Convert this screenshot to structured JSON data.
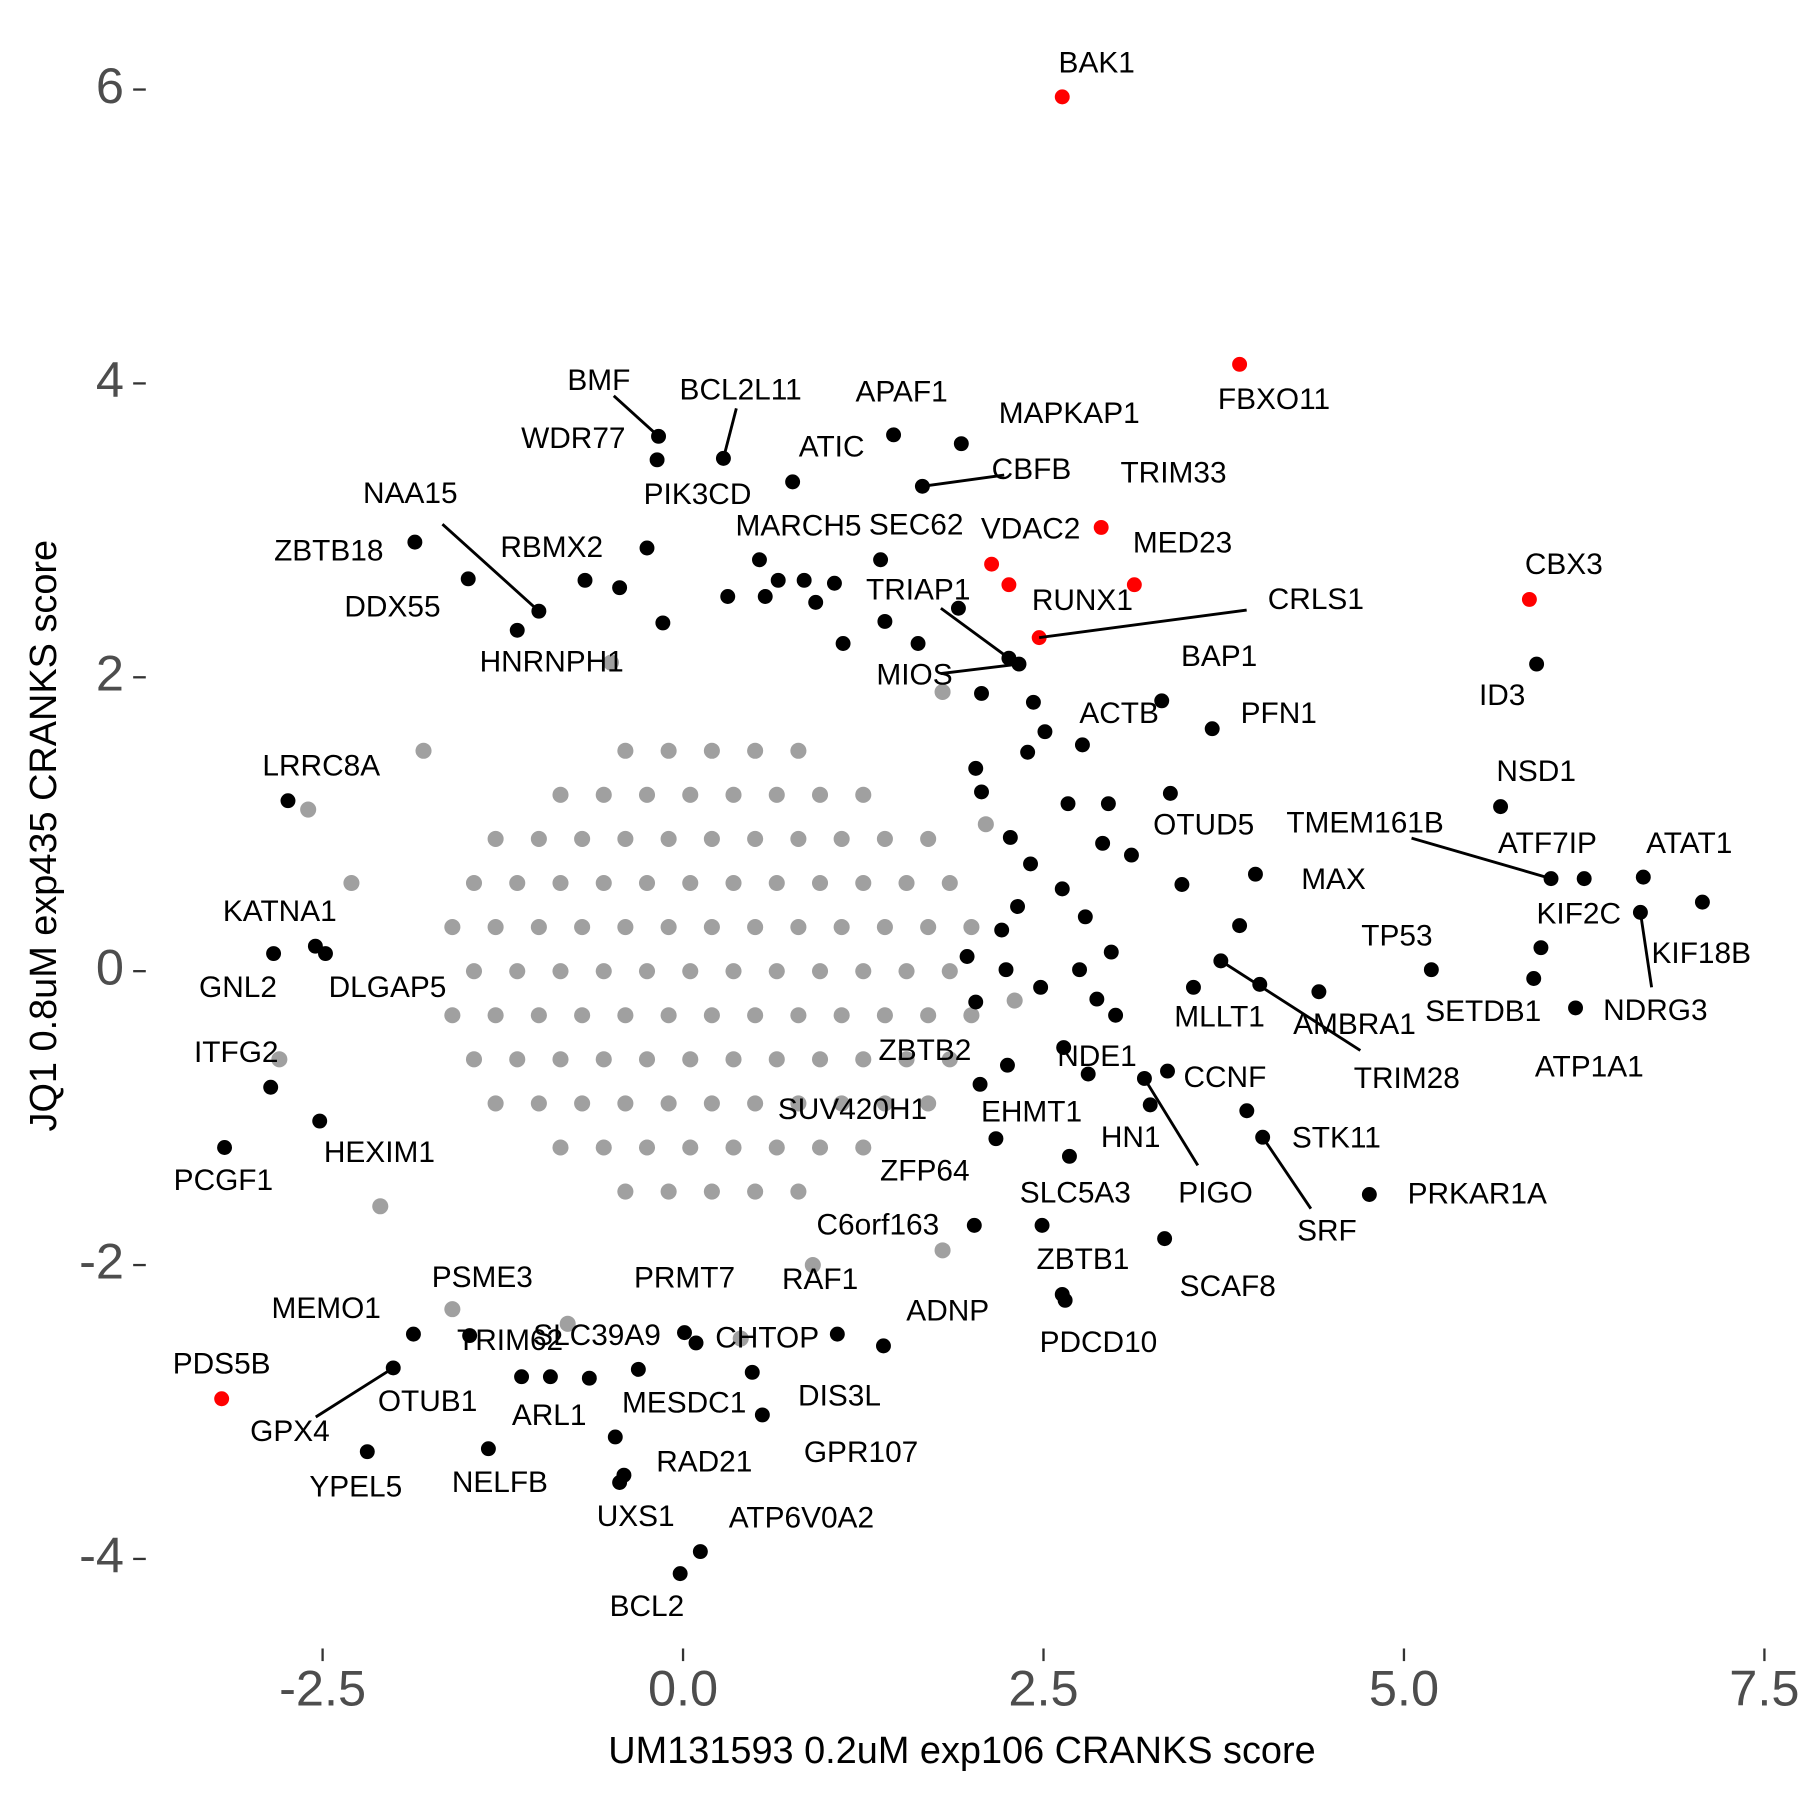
{
  "chart_data": {
    "type": "scatter",
    "x_label": "UM131593 0.2uM exp106 CRANKS score",
    "y_label": "JQ1 0.8uM exp435 CRANKS score",
    "xlim": [
      -3.7,
      7.5
    ],
    "ylim": [
      -4.6,
      6.3
    ],
    "xticks": [
      -2.5,
      {
        "value": 0,
        "label": "0.0"
      },
      2.5,
      {
        "value": 5,
        "label": "5.0"
      },
      7.5
    ],
    "yticks": [
      6,
      4,
      2,
      0,
      -2,
      -4
    ],
    "grid": false,
    "series": [
      {
        "color": "#a0a0a0",
        "x": [
          -0.4,
          -0.1,
          0.2,
          0.5,
          0.8,
          -0.85,
          -0.55,
          -0.25,
          0.05,
          0.35,
          0.65,
          0.95,
          1.25,
          -1.3,
          -1.0,
          -0.7,
          -0.4,
          -0.1,
          0.2,
          0.5,
          0.8,
          1.1,
          1.4,
          1.7,
          -1.45,
          -1.15,
          -0.85,
          -0.55,
          -0.25,
          0.05,
          0.35,
          0.65,
          0.95,
          1.25,
          1.55,
          1.85,
          -1.6,
          -1.3,
          -1.0,
          -0.7,
          -0.4,
          -0.1,
          0.2,
          0.5,
          0.8,
          1.1,
          1.4,
          1.7,
          2.0,
          -1.45,
          -1.15,
          -0.85,
          -0.55,
          -0.25,
          0.05,
          0.35,
          0.65,
          0.95,
          1.25,
          1.55,
          1.85,
          -1.6,
          -1.3,
          -1.0,
          -0.7,
          -0.4,
          -0.1,
          0.2,
          0.5,
          0.8,
          1.1,
          1.4,
          1.7,
          2.0,
          -1.45,
          -1.15,
          -0.85,
          -0.55,
          -0.25,
          0.05,
          0.35,
          0.65,
          0.95,
          1.25,
          1.55,
          1.85,
          -1.3,
          -1.0,
          -0.7,
          -0.4,
          -0.1,
          0.2,
          0.5,
          0.8,
          1.1,
          1.4,
          1.7,
          -0.85,
          -0.55,
          -0.25,
          0.05,
          0.35,
          0.65,
          0.95,
          1.25,
          -0.4,
          -0.1,
          0.2,
          0.5,
          0.8,
          -1.8,
          -2.6,
          -2.1,
          1.8,
          -0.5,
          0.9,
          -1.6,
          1.8,
          -2.8,
          -2.3,
          2.1,
          0.4,
          -0.8,
          2.3
        ],
        "y": [
          1.5,
          1.5,
          1.5,
          1.5,
          1.5,
          1.2,
          1.2,
          1.2,
          1.2,
          1.2,
          1.2,
          1.2,
          1.2,
          0.9,
          0.9,
          0.9,
          0.9,
          0.9,
          0.9,
          0.9,
          0.9,
          0.9,
          0.9,
          0.9,
          0.6,
          0.6,
          0.6,
          0.6,
          0.6,
          0.6,
          0.6,
          0.6,
          0.6,
          0.6,
          0.6,
          0.6,
          0.3,
          0.3,
          0.3,
          0.3,
          0.3,
          0.3,
          0.3,
          0.3,
          0.3,
          0.3,
          0.3,
          0.3,
          0.3,
          0,
          0,
          0,
          0,
          0,
          0,
          0,
          0,
          0,
          0,
          0,
          0,
          -0.3,
          -0.3,
          -0.3,
          -0.3,
          -0.3,
          -0.3,
          -0.3,
          -0.3,
          -0.3,
          -0.3,
          -0.3,
          -0.3,
          -0.3,
          -0.6,
          -0.6,
          -0.6,
          -0.6,
          -0.6,
          -0.6,
          -0.6,
          -0.6,
          -0.6,
          -0.6,
          -0.6,
          -0.6,
          -0.9,
          -0.9,
          -0.9,
          -0.9,
          -0.9,
          -0.9,
          -0.9,
          -0.9,
          -0.9,
          -0.9,
          -0.9,
          -1.2,
          -1.2,
          -1.2,
          -1.2,
          -1.2,
          -1.2,
          -1.2,
          -1.2,
          -1.5,
          -1.5,
          -1.5,
          -1.5,
          -1.5,
          1.5,
          1.1,
          -1.6,
          1.9,
          2.1,
          -2.0,
          -2.3,
          -1.9,
          -0.6,
          0.6,
          1.0,
          -2.5,
          -2.4,
          -0.2
        ]
      },
      {
        "color": "#000000",
        "x": [
          1.97,
          2.03,
          2.24,
          2.21,
          2.32,
          2.41,
          2.63,
          2.79,
          2.97,
          2.75,
          2.87,
          3.0,
          2.48,
          2.27,
          2.07,
          2.03,
          2.39,
          2.51,
          2.43,
          2.67,
          2.95,
          2.91,
          3.11,
          3.46,
          3.86,
          3.54,
          2.81,
          2.07,
          0.84,
          0.92,
          1.11,
          1.63,
          1.91,
          -0.44,
          -0.14,
          0.31,
          0.57,
          0.66,
          1.05,
          1.4
        ],
        "y": [
          0.1,
          -0.21,
          0.01,
          0.28,
          0.44,
          0.73,
          0.56,
          0.37,
          0.13,
          0.01,
          -0.19,
          -0.3,
          -0.11,
          0.91,
          1.22,
          1.38,
          1.49,
          1.63,
          1.83,
          1.14,
          1.14,
          0.87,
          0.79,
          0.59,
          0.31,
          -0.11,
          -0.7,
          1.89,
          2.66,
          2.51,
          2.23,
          2.23,
          2.47,
          2.61,
          2.37,
          2.55,
          2.55,
          2.66,
          2.64,
          2.38
        ]
      },
      {
        "color": "#000000",
        "labels": [
          "BMF",
          "WDR77",
          "BCL2L11",
          "APAF1",
          "MAPKAP1",
          "ATIC",
          "CBFB",
          "PIK3CD",
          "NAA15",
          "ZBTB18",
          "DDX55",
          "RBMX2",
          "HNRNPH1",
          "MARCH5",
          "SEC62",
          "TRIAP1",
          "MIOS",
          "LRRC8A",
          "KATNA1",
          "GNL2",
          "DLGAP5",
          "ITFG2",
          "PCGF1",
          "HEXIM1",
          "MEMO1",
          "PSME3",
          "TRIM62",
          "GPX4",
          "OTUB1",
          "YPEL5",
          "NELFB",
          "ARL1",
          "SLC39A9",
          "PRMT7",
          "CHTOP",
          "RAF1",
          "ADNP",
          "MESDC1",
          "DIS3L",
          "GPR107",
          "RAD21",
          "UXS1",
          "BCL2",
          "ATP6V0A2",
          "BAP1",
          "PFN1",
          "ACTB",
          "OTUD5",
          "ID3",
          "NSD1",
          "TMEM161B",
          "ATF7IP",
          "ATAT1",
          "KIF2C",
          "KIF18B",
          "NDRG3",
          "SETDB1",
          "ATP1A1",
          "MAX",
          "TP53",
          "AMBRA1",
          "MLLT1",
          "TRIM28",
          "CCNF",
          "NDE1",
          "ZBTB2",
          "SUV420H1",
          "EHMT1",
          "HN1",
          "PIGO",
          "STK11",
          "SRF",
          "ZFP64",
          "SLC5A3",
          "C6orf163",
          "PRKAR1A",
          "SCAF8",
          "ZBTB1",
          "PDCD10"
        ],
        "x": [
          -0.17,
          -0.18,
          0.28,
          1.46,
          1.93,
          0.76,
          1.66,
          -0.25,
          -1.0,
          -1.86,
          -1.49,
          -0.68,
          -1.15,
          0.53,
          1.37,
          2.26,
          2.33,
          -2.74,
          -2.55,
          -2.84,
          -2.48,
          -2.86,
          -3.18,
          -2.52,
          -1.87,
          -1.48,
          -1.12,
          -2.01,
          -0.92,
          -2.19,
          -1.35,
          -0.65,
          -0.31,
          0.01,
          0.09,
          1.07,
          1.39,
          -0.47,
          0.48,
          0.55,
          -0.41,
          -0.44,
          -0.02,
          0.12,
          3.32,
          3.67,
          2.77,
          3.38,
          5.92,
          5.67,
          6.02,
          6.25,
          6.66,
          5.95,
          7.07,
          6.64,
          5.9,
          6.19,
          3.97,
          5.19,
          4.41,
          4.0,
          3.73,
          3.36,
          2.64,
          2.06,
          2.25,
          2.17,
          3.24,
          3.2,
          3.91,
          4.02,
          2.68,
          2.49,
          2.02,
          4.76,
          3.34,
          2.63,
          2.65
        ],
        "y": [
          3.64,
          3.48,
          3.49,
          3.65,
          3.59,
          3.33,
          3.3,
          2.88,
          2.45,
          2.92,
          2.67,
          2.66,
          2.32,
          2.8,
          2.8,
          2.13,
          2.09,
          1.16,
          0.17,
          0.12,
          0.12,
          -0.79,
          -1.2,
          -1.02,
          -2.47,
          -2.48,
          -2.76,
          -2.7,
          -2.76,
          -3.27,
          -3.25,
          -2.77,
          -2.71,
          -2.46,
          -2.53,
          -2.47,
          -2.55,
          -3.17,
          -2.73,
          -3.02,
          -3.43,
          -3.48,
          -4.1,
          -3.95,
          1.84,
          1.65,
          1.54,
          1.21,
          2.09,
          1.12,
          0.63,
          0.63,
          0.64,
          0.16,
          0.47,
          0.4,
          -0.05,
          -0.25,
          0.66,
          0.01,
          -0.14,
          -0.09,
          0.07,
          -0.68,
          -0.52,
          -0.77,
          -0.64,
          -1.14,
          -0.91,
          -0.73,
          -0.95,
          -1.13,
          -1.26,
          -1.73,
          -1.73,
          -1.52,
          -1.82,
          -2.2,
          -2.24
        ]
      },
      {
        "color": "#ff0000",
        "labels": [
          "BAK1",
          "FBXO11",
          "VDAC2",
          "TRIM33",
          "MED23",
          "RUNX1",
          "CRLS1",
          "CBX3",
          "PDS5B"
        ],
        "x": [
          2.63,
          3.86,
          2.14,
          2.9,
          3.13,
          2.26,
          2.47,
          5.87,
          -3.2
        ],
        "y": [
          5.95,
          4.13,
          2.77,
          3.02,
          2.63,
          2.63,
          2.27,
          2.53,
          -2.91
        ]
      }
    ]
  }
}
